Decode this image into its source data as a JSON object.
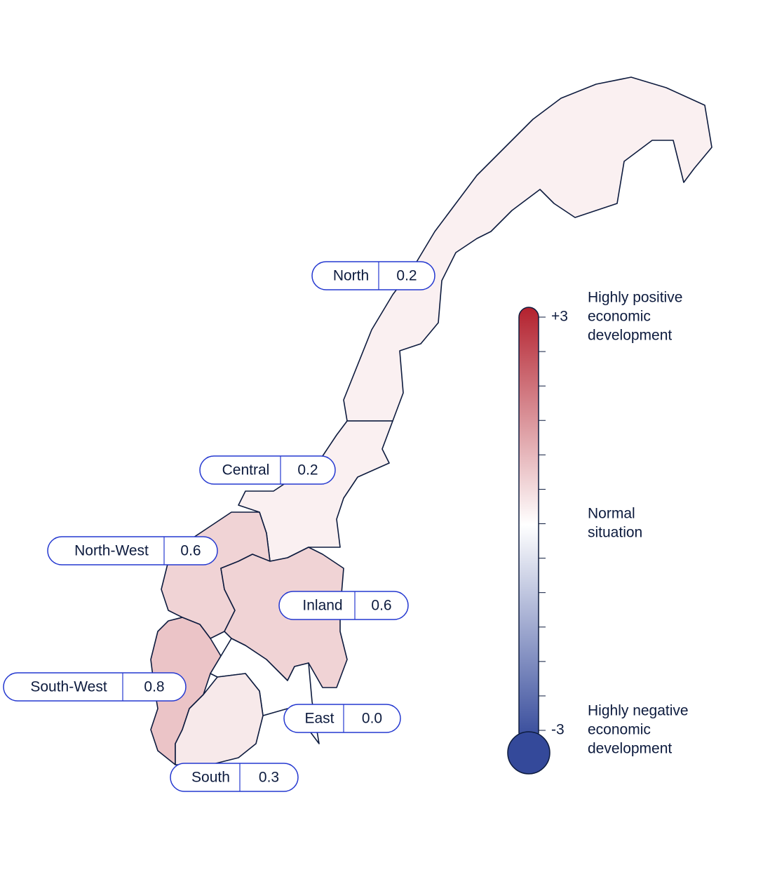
{
  "chart_data": {
    "type": "choropleth",
    "categories": [
      "North",
      "Central",
      "North-West",
      "Inland",
      "South-West",
      "East",
      "South"
    ],
    "values": [
      0.2,
      0.2,
      0.6,
      0.6,
      0.8,
      0,
      0.3
    ],
    "value_labels": [
      "0.2",
      "0.2",
      "0.6",
      "0.6",
      "0.8",
      "0.0",
      "0.3"
    ],
    "ylim": [
      -3,
      3
    ],
    "yticks": [
      {
        "value": 3,
        "label": "+3"
      },
      -3
    ],
    "minor_ticks": [
      2.5,
      2,
      1.5,
      1,
      0.5,
      0,
      -0.5,
      -1,
      -1.5,
      -2,
      -2.5
    ],
    "colors": {
      "high": "#b3212e",
      "mid": "#ffffff",
      "low": "#34499a"
    },
    "annotations": [
      {
        "value": 3,
        "lines": [
          "Highly positive",
          "economic",
          "development"
        ]
      },
      {
        "value": 0,
        "lines": [
          "Normal",
          "situation"
        ]
      },
      {
        "value": -3,
        "lines": [
          "Highly negative",
          "economic",
          "development"
        ]
      }
    ]
  }
}
